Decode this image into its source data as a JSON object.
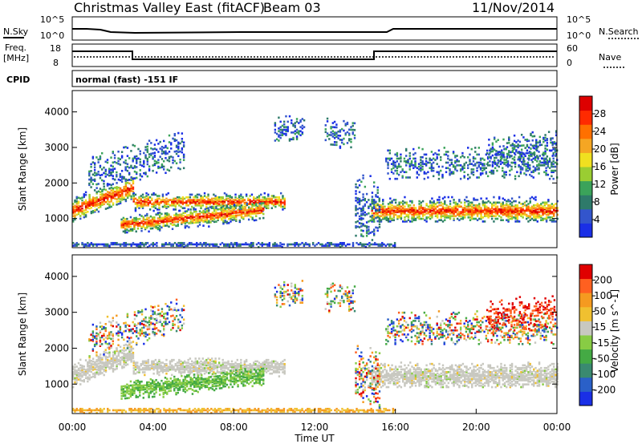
{
  "header": {
    "station": "Christmas Valley East (fitACF)",
    "beam": "Beam 03",
    "date": "11/Nov/2014"
  },
  "status_panels": {
    "nsky": {
      "label": "N.Sky",
      "left_ticks": [
        "10^5",
        "10^0"
      ]
    },
    "nsearch": {
      "label": "N.Search",
      "right_ticks": [
        "10^5",
        "10^0"
      ]
    },
    "freq": {
      "label_line1": "Freq.",
      "label_line2": "[MHz]",
      "left_ticks": [
        "18",
        "8"
      ]
    },
    "nave": {
      "label": "Nave",
      "right_ticks": [
        "60",
        "0"
      ]
    },
    "cpid": {
      "label": "CPID",
      "mode_text": "normal (fast) -151 IF"
    }
  },
  "chart_data": [
    {
      "type": "heatmap",
      "panel": "power",
      "ylabel": "Slant Range [km]",
      "yticks": [
        "1000",
        "2000",
        "3000",
        "4000"
      ],
      "ylim": [
        180,
        4600
      ],
      "colorbar": {
        "label": "Power [dB]",
        "ticks": [
          "4",
          "8",
          "12",
          "16",
          "20",
          "24",
          "28"
        ],
        "colors": [
          "#1a2fe6",
          "#3355cc",
          "#2e7a6a",
          "#3ba35a",
          "#9acd32",
          "#f0e020",
          "#f5a623",
          "#ff7000",
          "#ff2a00",
          "#dd0000"
        ]
      },
      "features": [
        {
          "name": "E-region band",
          "t": [
            "00:00",
            "16:00"
          ],
          "range_km": [
            200,
            300
          ]
        },
        {
          "name": "main band A",
          "t": [
            "00:00",
            "03:00"
          ],
          "range_km": [
            900,
            1700
          ]
        },
        {
          "name": "main band B",
          "t": [
            "03:00",
            "10:30"
          ],
          "range_km": [
            1200,
            1700
          ]
        },
        {
          "name": "main band C",
          "t": [
            "02:30",
            "09:30"
          ],
          "range_km": [
            500,
            1000
          ]
        },
        {
          "name": "evening band",
          "t": [
            "15:00",
            "24:00"
          ],
          "range_km": [
            900,
            1700
          ]
        }
      ]
    },
    {
      "type": "heatmap",
      "panel": "velocity",
      "ylabel": "Slant Range [km]",
      "xlabel": "Time UT",
      "xticks": [
        "00:00",
        "04:00",
        "08:00",
        "12:00",
        "16:00",
        "20:00",
        "00:00"
      ],
      "yticks": [
        "1000",
        "2000",
        "3000",
        "4000"
      ],
      "ylim": [
        180,
        4600
      ],
      "colorbar": {
        "label": "Velocity [m s^-1]",
        "ticks": [
          "200",
          "100",
          "50",
          "15",
          "-15",
          "-50",
          "-100",
          "-200"
        ],
        "colors": [
          "#1a2fe6",
          "#2a60c8",
          "#3a8a70",
          "#44aa44",
          "#88cc44",
          "#c8c8c0",
          "#f0c030",
          "#f59a20",
          "#ff6020",
          "#e00000"
        ]
      }
    }
  ],
  "colors": {
    "frame": "#000000",
    "nave_line": "#000000"
  }
}
